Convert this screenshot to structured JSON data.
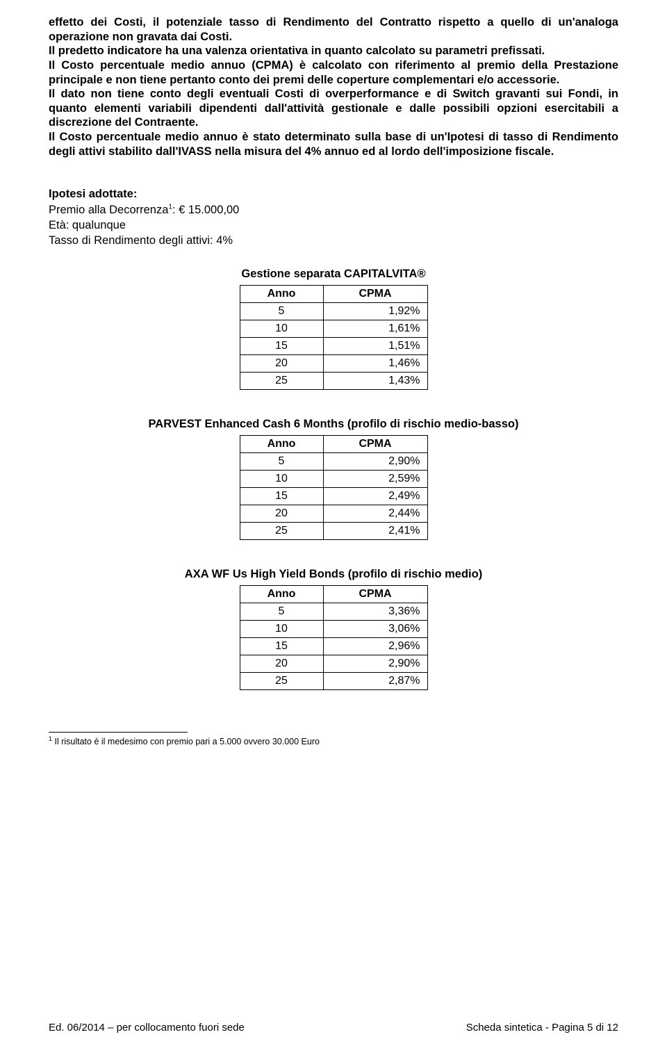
{
  "paragraphs": {
    "p1": "effetto dei Costi, il potenziale tasso di Rendimento del Contratto rispetto a quello di un'analoga operazione non gravata dai Costi.",
    "p2": "Il predetto indicatore ha una valenza orientativa in quanto calcolato su parametri prefissati.",
    "p3": "Il Costo percentuale medio annuo (CPMA) è calcolato con riferimento al premio della Prestazione principale e non tiene pertanto conto dei premi delle coperture complementari e/o accessorie.",
    "p4": "Il dato non tiene conto degli eventuali Costi di overperformance e di Switch gravanti sui Fondi, in quanto elementi variabili dipendenti dall'attività gestionale e dalle possibili opzioni esercitabili a discrezione del Contraente.",
    "p5": "Il Costo percentuale medio annuo è stato determinato sulla base di un'Ipotesi di tasso di Rendimento degli attivi stabilito dall'IVASS nella misura del 4% annuo ed al lordo dell'imposizione fiscale."
  },
  "hypotheses": {
    "header": "Ipotesi adottate:",
    "line1a": "Premio alla Decorrenza",
    "line1_sup": "1",
    "line1b": ": € 15.000,00",
    "line2": "Età: qualunque",
    "line3": "Tasso di Rendimento degli attivi: 4%"
  },
  "tables": {
    "col_anno": "Anno",
    "col_cpma": "CPMA",
    "t1": {
      "title": "Gestione separata CAPITALVITA®",
      "rows": [
        {
          "anno": "5",
          "cpma": "1,92%"
        },
        {
          "anno": "10",
          "cpma": "1,61%"
        },
        {
          "anno": "15",
          "cpma": "1,51%"
        },
        {
          "anno": "20",
          "cpma": "1,46%"
        },
        {
          "anno": "25",
          "cpma": "1,43%"
        }
      ]
    },
    "t2": {
      "title": "PARVEST Enhanced Cash 6 Months  (profilo di rischio medio-basso)",
      "rows": [
        {
          "anno": "5",
          "cpma": "2,90%"
        },
        {
          "anno": "10",
          "cpma": "2,59%"
        },
        {
          "anno": "15",
          "cpma": "2,49%"
        },
        {
          "anno": "20",
          "cpma": "2,44%"
        },
        {
          "anno": "25",
          "cpma": "2,41%"
        }
      ]
    },
    "t3": {
      "title": "AXA WF Us High Yield Bonds (profilo di rischio medio)",
      "rows": [
        {
          "anno": "5",
          "cpma": "3,36%"
        },
        {
          "anno": "10",
          "cpma": "3,06%"
        },
        {
          "anno": "15",
          "cpma": "2,96%"
        },
        {
          "anno": "20",
          "cpma": "2,90%"
        },
        {
          "anno": "25",
          "cpma": "2,87%"
        }
      ]
    }
  },
  "footnote": {
    "sup": "1",
    "text": " Il risultato è il medesimo con premio pari a 5.000 ovvero 30.000 Euro"
  },
  "footer": {
    "left": "Ed. 06/2014 – per collocamento fuori sede",
    "right": "Scheda sintetica  - Pagina 5 di 12"
  }
}
